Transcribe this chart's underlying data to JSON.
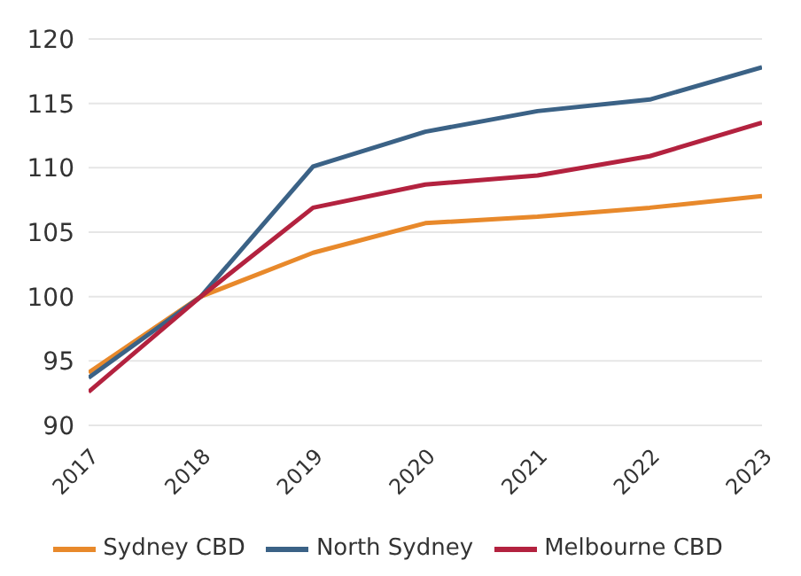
{
  "chart_data": {
    "type": "line",
    "categories": [
      "2017",
      "2018",
      "2019",
      "2020",
      "2021",
      "2022",
      "2023"
    ],
    "series": [
      {
        "name": "Sydney CBD",
        "color": "#e8892b",
        "values": [
          94.1,
          100,
          103.4,
          105.7,
          106.2,
          106.9,
          107.8
        ]
      },
      {
        "name": "North Sydney",
        "color": "#3b6286",
        "values": [
          93.7,
          100,
          110.1,
          112.8,
          114.4,
          115.3,
          117.8
        ]
      },
      {
        "name": "Melbourne CBD",
        "color": "#b3223f",
        "values": [
          92.6,
          100,
          106.9,
          108.7,
          109.4,
          110.9,
          113.5
        ]
      }
    ],
    "ylim": [
      90,
      120
    ],
    "yticks": [
      90,
      95,
      100,
      105,
      110,
      115,
      120
    ],
    "grid": "y",
    "legend": "bottom",
    "marker": "none",
    "line_style": "solid"
  }
}
